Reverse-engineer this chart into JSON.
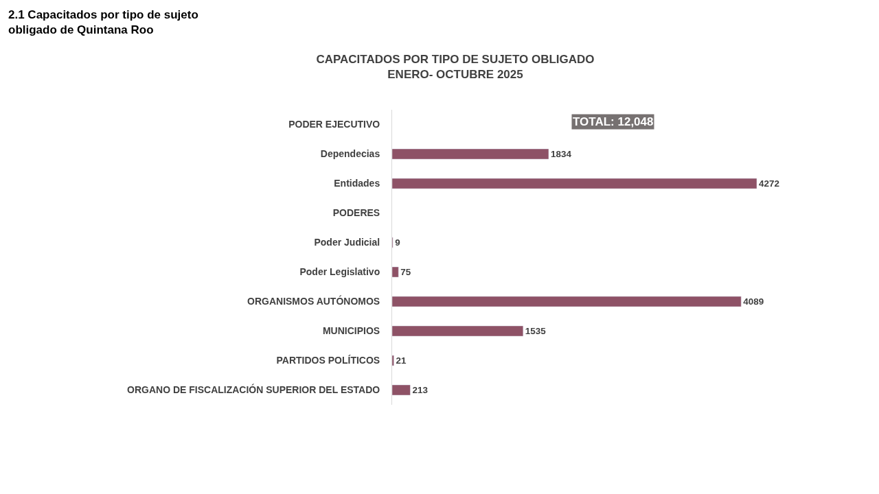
{
  "chart_data": {
    "type": "bar",
    "orientation": "horizontal",
    "title": "CAPACITADOS POR TIPO DE SUJETO OBLIGADO\nENERO- OCTUBRE 2025",
    "categories": [
      "PODER EJECUTIVO",
      "Dependecias",
      "Entidades",
      "PODERES",
      "Poder Judicial",
      "Poder Legislativo",
      "ORGANISMOS AUTÓNOMOS",
      "MUNICIPIOS",
      "PARTIDOS POLÍTICOS",
      "ORGANO DE FISCALIZACIÓN SUPERIOR DEL ESTADO"
    ],
    "values": [
      null,
      1834,
      4272,
      null,
      9,
      75,
      4089,
      1535,
      21,
      213
    ],
    "color": "#8e5266",
    "data_labels": true,
    "annotations": [
      "2.1 Capacitados por tipo de sujeto\nobligado de Quintana Roo",
      "TOTAL: 12,048"
    ]
  }
}
